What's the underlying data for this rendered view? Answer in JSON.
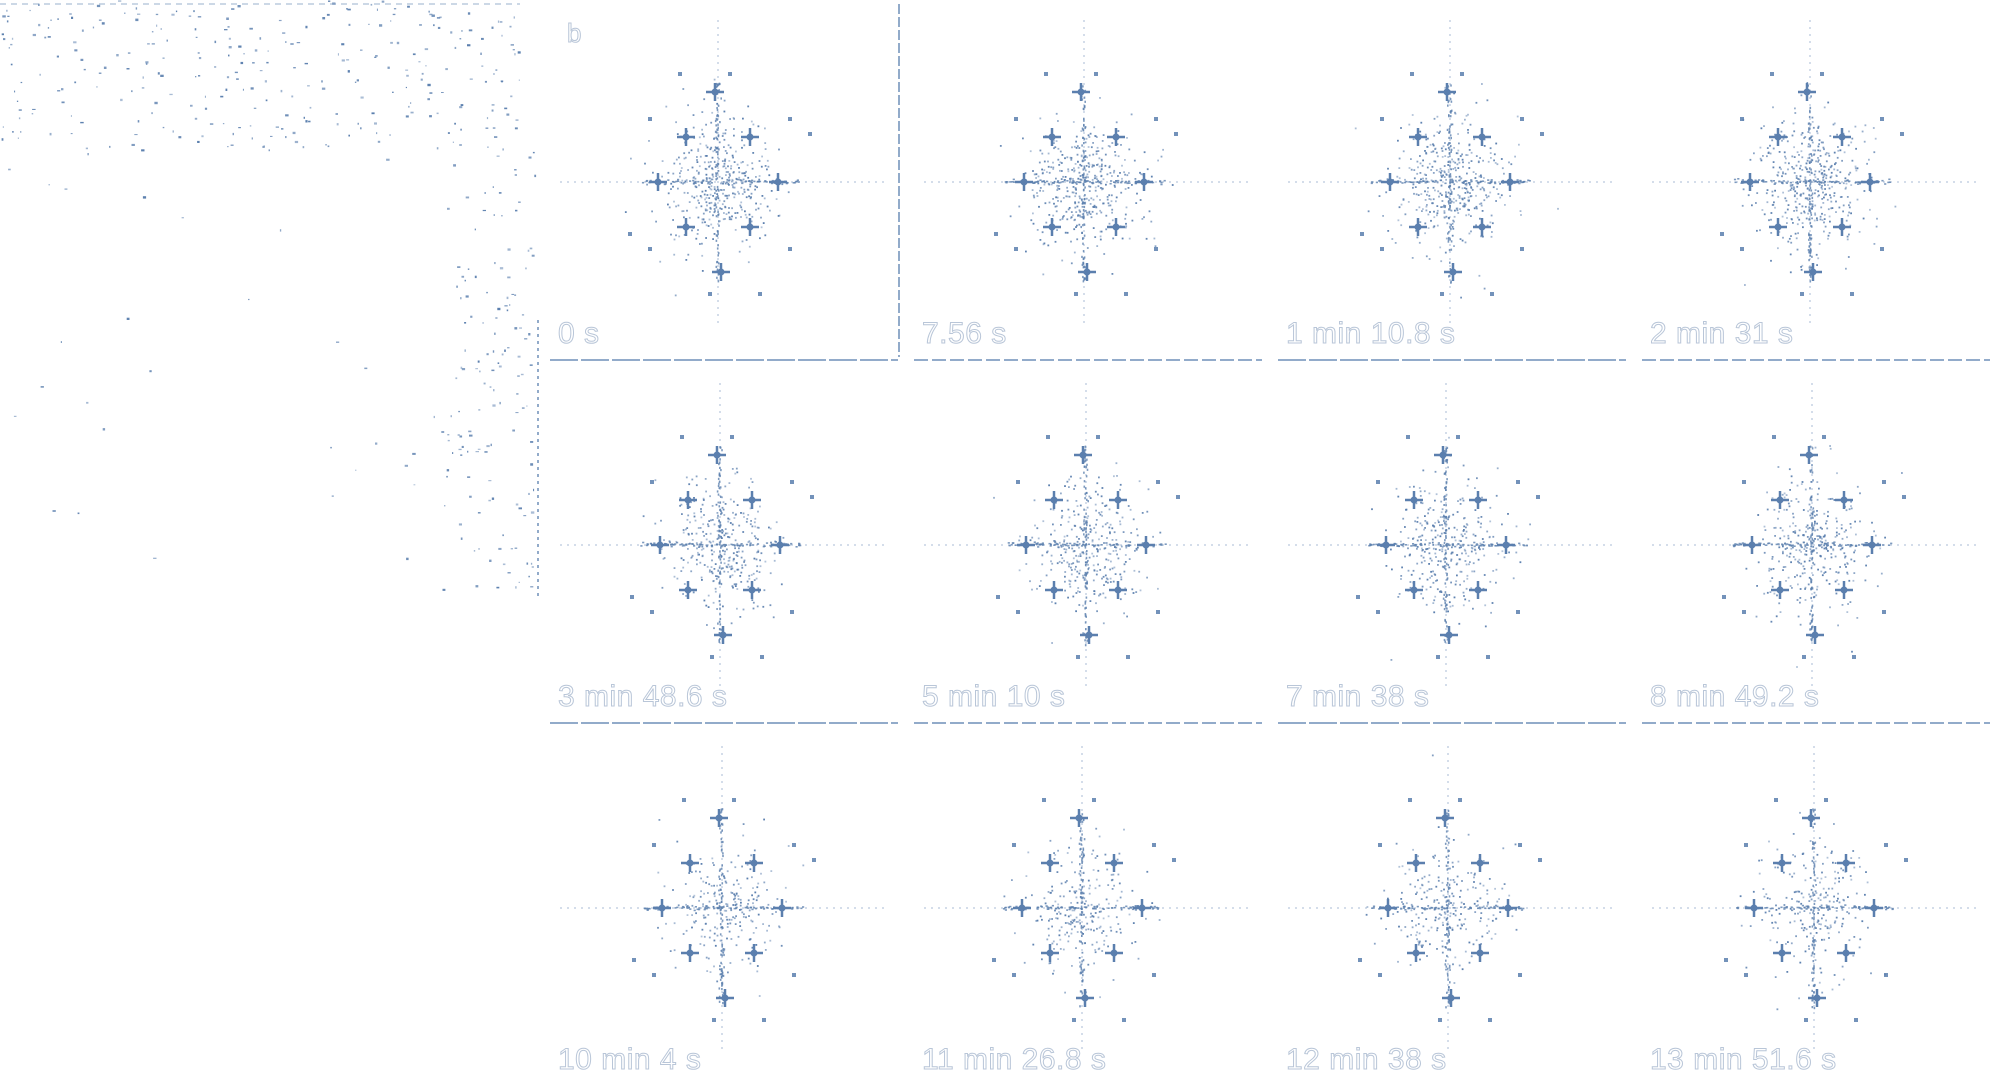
{
  "figure": {
    "panel_letter": "b",
    "colors": {
      "dots": "#5b7fae",
      "lines": "#6f8fb8",
      "label_outline": "#b9c6d8"
    },
    "first_panel_insets": [
      "",
      ""
    ],
    "panels": [
      {
        "label": "0 s"
      },
      {
        "label": "7.56 s"
      },
      {
        "label": "1 min 10.8 s"
      },
      {
        "label": "2 min 31 s"
      },
      {
        "label": "3 min 48.6 s"
      },
      {
        "label": "5 min 10 s"
      },
      {
        "label": "7 min 38 s"
      },
      {
        "label": "8 min 49.2 s"
      },
      {
        "label": "10 min 4 s"
      },
      {
        "label": "11 min 26.8 s"
      },
      {
        "label": "12 min 38 s"
      },
      {
        "label": "13 min 51.6 s"
      }
    ]
  }
}
